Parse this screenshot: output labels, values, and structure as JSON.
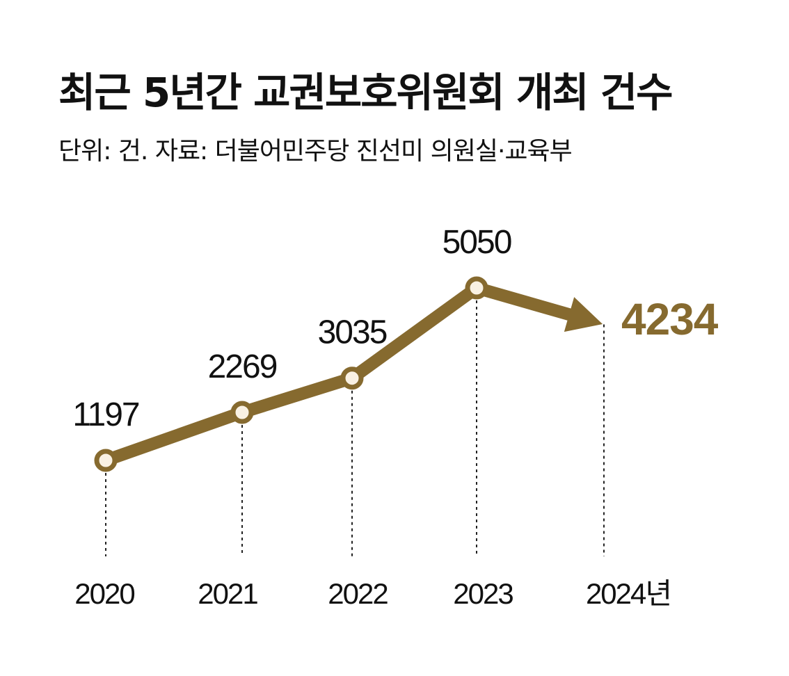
{
  "colors": {
    "accent": "#866a2f",
    "marker_fill": "#f9f1e3",
    "text": "#111111"
  },
  "chart_data": {
    "type": "line",
    "title": "최근 5년간 교권보호위원회 개최 건수",
    "subtitle": "단위: 건. 자료: 더불어민주당 진선미 의원실·교육부",
    "categories": [
      "2020",
      "2021",
      "2022",
      "2023",
      "2024년"
    ],
    "series": [
      {
        "values": [
          1197,
          2269,
          3035,
          5050,
          4234
        ]
      }
    ],
    "data_labels": [
      "1197",
      "2269",
      "3035",
      "5050",
      "4234"
    ],
    "highlight_last": true,
    "grid": false,
    "legend": "none"
  }
}
